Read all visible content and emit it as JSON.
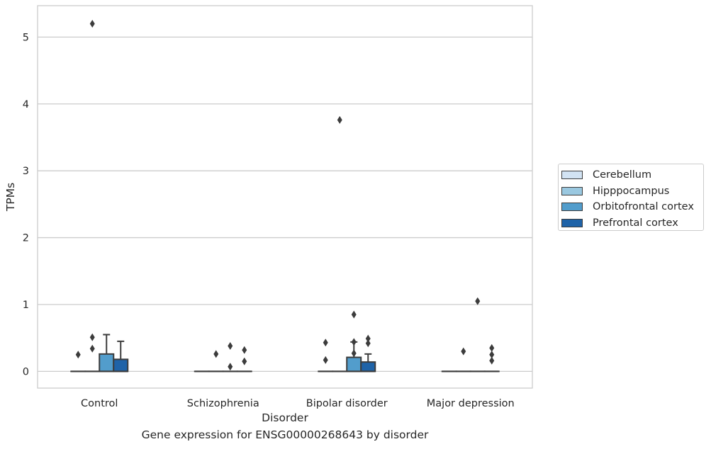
{
  "caption": "Gene expression for ENSG00000268643 by disorder",
  "colors": {
    "Cerebellum": "#d2e3f3",
    "Hipppocampus": "#9ac8e0",
    "Orbitofrontal cortex": "#529dcc",
    "Prefrontal cortex": "#1f63a8",
    "grid": "#cccccc",
    "box_line": "#3c3c3c"
  },
  "chart_data": {
    "type": "box",
    "title": "",
    "xlabel": "Disorder",
    "ylabel": "TPMs",
    "ylim": [
      -0.25,
      5.47
    ],
    "yticks": [
      0,
      1,
      2,
      3,
      4,
      5
    ],
    "categories": [
      "Control",
      "Schizophrenia",
      "Bipolar disorder",
      "Major depression"
    ],
    "grid": true,
    "legend_position": "right",
    "series": [
      {
        "name": "Cerebellum",
        "boxes": [
          {
            "q1": 0,
            "median": 0,
            "q3": 0,
            "whisker_low": 0,
            "whisker_high": 0,
            "outliers": [
              0.25
            ]
          },
          {
            "q1": 0,
            "median": 0,
            "q3": 0,
            "whisker_low": 0,
            "whisker_high": 0,
            "outliers": []
          },
          {
            "q1": 0,
            "median": 0,
            "q3": 0,
            "whisker_low": 0,
            "whisker_high": 0,
            "outliers": [
              0.17,
              0.43
            ]
          },
          {
            "q1": 0,
            "median": 0,
            "q3": 0,
            "whisker_low": 0,
            "whisker_high": 0,
            "outliers": []
          }
        ]
      },
      {
        "name": "Hipppocampus",
        "boxes": [
          {
            "q1": 0,
            "median": 0,
            "q3": 0,
            "whisker_low": 0,
            "whisker_high": 0,
            "outliers": [
              0.34,
              0.51,
              5.2
            ]
          },
          {
            "q1": 0,
            "median": 0,
            "q3": 0,
            "whisker_low": 0,
            "whisker_high": 0,
            "outliers": [
              0.26
            ]
          },
          {
            "q1": 0,
            "median": 0,
            "q3": 0,
            "whisker_low": 0,
            "whisker_high": 0,
            "outliers": [
              3.76
            ]
          },
          {
            "q1": 0,
            "median": 0,
            "q3": 0,
            "whisker_low": 0,
            "whisker_high": 0,
            "outliers": [
              0.3
            ]
          }
        ]
      },
      {
        "name": "Orbitofrontal cortex",
        "boxes": [
          {
            "q1": 0,
            "median": 0,
            "q3": 0.26,
            "whisker_low": 0,
            "whisker_high": 0.55,
            "outliers": []
          },
          {
            "q1": 0,
            "median": 0,
            "q3": 0,
            "whisker_low": 0,
            "whisker_high": 0,
            "outliers": [
              0.07,
              0.38
            ]
          },
          {
            "q1": 0,
            "median": 0,
            "q3": 0.21,
            "whisker_low": 0,
            "whisker_high": 0.44,
            "outliers": [
              0.27,
              0.44,
              0.85
            ]
          },
          {
            "q1": 0,
            "median": 0,
            "q3": 0,
            "whisker_low": 0,
            "whisker_high": 0,
            "outliers": [
              1.05
            ]
          }
        ]
      },
      {
        "name": "Prefrontal cortex",
        "boxes": [
          {
            "q1": 0,
            "median": 0,
            "q3": 0.18,
            "whisker_low": 0,
            "whisker_high": 0.45,
            "outliers": []
          },
          {
            "q1": 0,
            "median": 0,
            "q3": 0,
            "whisker_low": 0,
            "whisker_high": 0,
            "outliers": [
              0.15,
              0.32
            ]
          },
          {
            "q1": 0,
            "median": 0,
            "q3": 0.14,
            "whisker_low": 0,
            "whisker_high": 0.26,
            "outliers": [
              0.42,
              0.49
            ]
          },
          {
            "q1": 0,
            "median": 0,
            "q3": 0,
            "whisker_low": 0,
            "whisker_high": 0,
            "outliers": [
              0.16,
              0.25,
              0.35
            ]
          }
        ]
      }
    ]
  }
}
